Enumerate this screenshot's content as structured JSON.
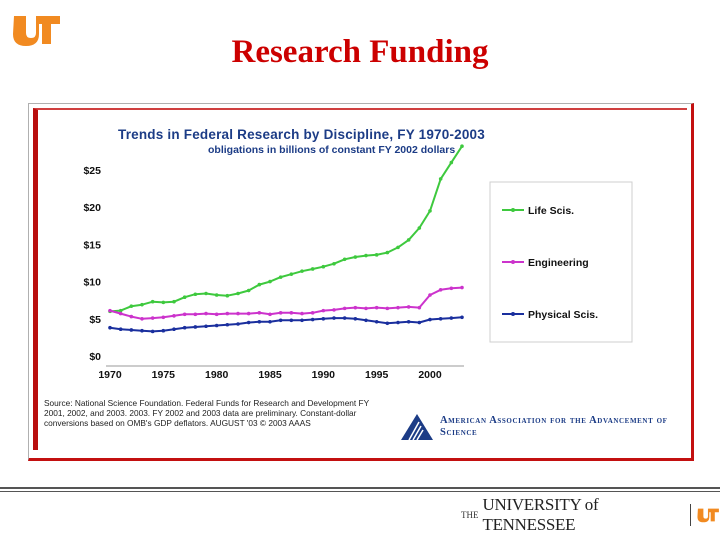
{
  "slide": {
    "title": "Research Funding",
    "logo_icon": "ut-logo-icon",
    "brand_color": "#f18a21",
    "title_color": "#cc0000",
    "footer": {
      "prefix": "THE",
      "name": "UNIVERSITY of TENNESSEE",
      "mark_icon": "ut-logo-icon"
    }
  },
  "chart_data": {
    "type": "line",
    "title": "Trends in Federal Research by Discipline, FY 1970-2003",
    "subtitle": "obligations in billions of constant FY 2002 dollars",
    "xlabel": "",
    "ylabel": "",
    "xlim": [
      1970,
      2003
    ],
    "ylim": [
      0,
      25
    ],
    "x_ticks": [
      "1970",
      "1975",
      "1980",
      "1985",
      "1990",
      "1995",
      "2000"
    ],
    "y_ticks": [
      "$0",
      "$5",
      "$10",
      "$15",
      "$20",
      "$25"
    ],
    "grid": false,
    "legend_position": "right",
    "x": [
      1970,
      1971,
      1972,
      1973,
      1974,
      1975,
      1976,
      1977,
      1978,
      1979,
      1980,
      1981,
      1982,
      1983,
      1984,
      1985,
      1986,
      1987,
      1988,
      1989,
      1990,
      1991,
      1992,
      1993,
      1994,
      1995,
      1996,
      1997,
      1998,
      1999,
      2000,
      2001,
      2002,
      2003
    ],
    "series": [
      {
        "name": "Life Scis.",
        "color": "#3ec93e",
        "values": [
          6.0,
          6.1,
          6.7,
          6.9,
          7.3,
          7.2,
          7.3,
          7.9,
          8.3,
          8.4,
          8.2,
          8.1,
          8.4,
          8.8,
          9.6,
          10.0,
          10.6,
          11.0,
          11.4,
          11.7,
          12.0,
          12.4,
          13.0,
          13.3,
          13.5,
          13.6,
          13.9,
          14.6,
          15.6,
          17.2,
          19.5,
          23.8,
          26.0,
          28.2
        ]
      },
      {
        "name": "Engineering",
        "color": "#cc33cc",
        "values": [
          6.1,
          5.7,
          5.3,
          5.0,
          5.1,
          5.2,
          5.4,
          5.6,
          5.6,
          5.7,
          5.6,
          5.7,
          5.7,
          5.7,
          5.8,
          5.6,
          5.8,
          5.8,
          5.7,
          5.8,
          6.1,
          6.2,
          6.4,
          6.5,
          6.4,
          6.5,
          6.4,
          6.5,
          6.6,
          6.5,
          8.2,
          8.9,
          9.1,
          9.2
        ]
      },
      {
        "name": "Physical Scis.",
        "color": "#1a2f9e",
        "values": [
          3.8,
          3.6,
          3.5,
          3.4,
          3.3,
          3.4,
          3.6,
          3.8,
          3.9,
          4.0,
          4.1,
          4.2,
          4.3,
          4.5,
          4.6,
          4.6,
          4.8,
          4.8,
          4.8,
          4.9,
          5.0,
          5.1,
          5.1,
          5.0,
          4.8,
          4.6,
          4.4,
          4.5,
          4.6,
          4.5,
          4.9,
          5.0,
          5.1,
          5.2
        ]
      }
    ],
    "source_note": "Source: National Science Foundation. Federal Funds for Research and Development FY 2001, 2002, and 2003. 2003. FY 2002 and 2003 data are preliminary. Constant-dollar conversions based on OMB's GDP deflators. AUGUST '03 © 2003 AAAS",
    "publisher": "American Association for the Advancement of Science"
  }
}
